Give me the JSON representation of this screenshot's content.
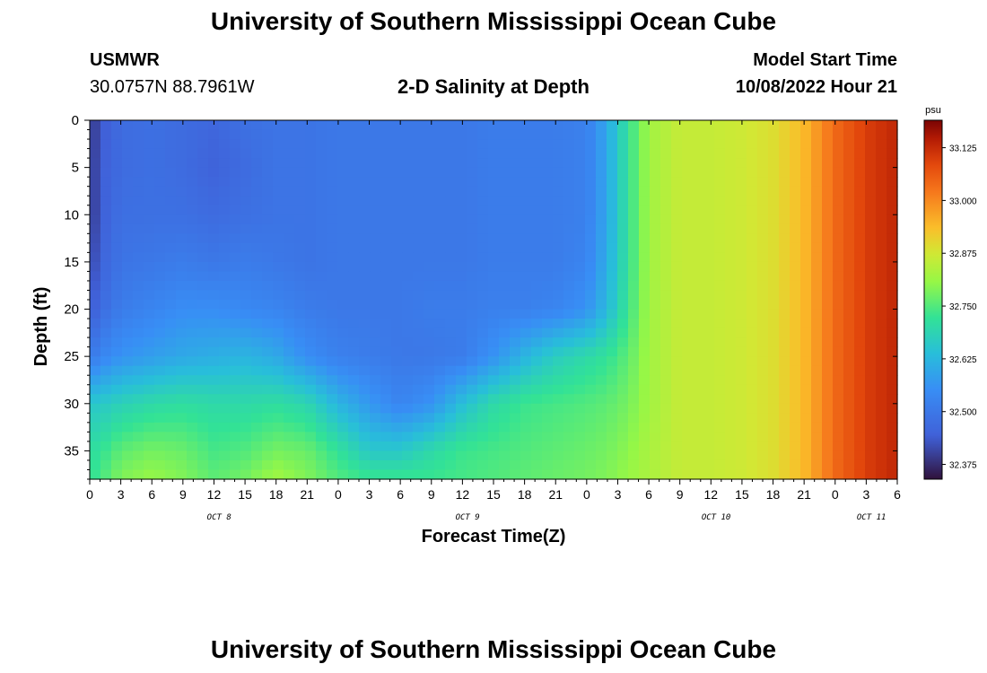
{
  "header": {
    "title": "University of Southern Mississippi Ocean Cube",
    "station": "USMWR",
    "location": "30.0757N  88.7961W",
    "plot_title": "2-D Salinity at Depth",
    "model_start_label": "Model Start Time",
    "model_start_value": "10/08/2022 Hour 21"
  },
  "footer": {
    "title": "University of Southern Mississippi Ocean Cube"
  },
  "chart_data": {
    "type": "heatmap",
    "title": "2-D Salinity at Depth",
    "xlabel": "Forecast Time(Z)",
    "ylabel": "Depth (ft)",
    "x_range_hours": [
      0,
      78
    ],
    "x_tick_labels": [
      "0",
      "3",
      "6",
      "9",
      "12",
      "15",
      "18",
      "21",
      "0",
      "3",
      "6",
      "9",
      "12",
      "15",
      "18",
      "21",
      "0",
      "3",
      "6",
      "9",
      "12",
      "15",
      "18",
      "21",
      "0",
      "3",
      "6"
    ],
    "date_labels": [
      {
        "text": "OCT 8",
        "hour": 12.5
      },
      {
        "text": "OCT 9",
        "hour": 36.5
      },
      {
        "text": "OCT 10",
        "hour": 60.5
      },
      {
        "text": "OCT 11",
        "hour": 75.5
      }
    ],
    "y_range": [
      0,
      38
    ],
    "y_ticks": [
      0,
      5,
      10,
      15,
      20,
      25,
      30,
      35
    ],
    "colorbar": {
      "unit": "psu",
      "range": [
        32.34,
        33.19
      ],
      "ticks": [
        "32.375",
        "32.500",
        "32.625",
        "32.750",
        "32.875",
        "33.000",
        "33.125"
      ]
    },
    "depths": [
      0,
      5,
      10,
      15,
      20,
      25,
      30,
      35,
      38
    ],
    "times": [
      0,
      1,
      3,
      6,
      9,
      12,
      15,
      18,
      21,
      24,
      27,
      30,
      33,
      36,
      39,
      42,
      45,
      48,
      50,
      52,
      54,
      57,
      60,
      63,
      66,
      69,
      72,
      75,
      78
    ],
    "values": [
      [
        32.38,
        32.43,
        32.47,
        32.48,
        32.47,
        32.46,
        32.48,
        32.49,
        32.49,
        32.5,
        32.5,
        32.5,
        32.5,
        32.5,
        32.51,
        32.51,
        32.51,
        32.52,
        32.6,
        32.72,
        32.82,
        32.86,
        32.86,
        32.87,
        32.89,
        32.94,
        33.04,
        33.1,
        33.13
      ],
      [
        32.38,
        32.44,
        32.47,
        32.48,
        32.47,
        32.45,
        32.47,
        32.49,
        32.49,
        32.5,
        32.5,
        32.5,
        32.5,
        32.5,
        32.51,
        32.51,
        32.51,
        32.52,
        32.6,
        32.72,
        32.82,
        32.86,
        32.86,
        32.87,
        32.89,
        32.94,
        33.04,
        33.1,
        33.13
      ],
      [
        32.38,
        32.44,
        32.48,
        32.48,
        32.48,
        32.47,
        32.48,
        32.49,
        32.49,
        32.5,
        32.5,
        32.5,
        32.5,
        32.5,
        32.51,
        32.51,
        32.51,
        32.52,
        32.6,
        32.72,
        32.82,
        32.86,
        32.86,
        32.87,
        32.89,
        32.94,
        33.04,
        33.1,
        33.13
      ],
      [
        32.4,
        32.45,
        32.49,
        32.5,
        32.51,
        32.5,
        32.51,
        32.5,
        32.49,
        32.5,
        32.5,
        32.5,
        32.5,
        32.5,
        32.51,
        32.51,
        32.51,
        32.53,
        32.61,
        32.72,
        32.82,
        32.86,
        32.86,
        32.87,
        32.89,
        32.94,
        33.04,
        33.1,
        33.13
      ],
      [
        32.43,
        32.47,
        32.51,
        32.53,
        32.55,
        32.55,
        32.54,
        32.53,
        32.51,
        32.5,
        32.5,
        32.5,
        32.51,
        32.51,
        32.52,
        32.52,
        32.53,
        32.56,
        32.63,
        32.73,
        32.82,
        32.86,
        32.86,
        32.87,
        32.89,
        32.94,
        33.04,
        33.1,
        33.13
      ],
      [
        32.5,
        32.53,
        32.56,
        32.58,
        32.6,
        32.61,
        32.62,
        32.6,
        32.55,
        32.52,
        32.51,
        32.5,
        32.5,
        32.51,
        32.56,
        32.62,
        32.67,
        32.7,
        32.72,
        32.76,
        32.82,
        32.86,
        32.86,
        32.87,
        32.89,
        32.94,
        33.04,
        33.1,
        33.13
      ],
      [
        32.66,
        32.66,
        32.68,
        32.7,
        32.71,
        32.7,
        32.7,
        32.71,
        32.69,
        32.62,
        32.57,
        32.53,
        32.56,
        32.64,
        32.7,
        32.73,
        32.74,
        32.75,
        32.76,
        32.78,
        32.82,
        32.86,
        32.86,
        32.87,
        32.89,
        32.94,
        33.04,
        33.1,
        33.13
      ],
      [
        32.71,
        32.72,
        32.76,
        32.78,
        32.77,
        32.74,
        32.75,
        32.78,
        32.77,
        32.72,
        32.66,
        32.66,
        32.7,
        32.73,
        32.74,
        32.75,
        32.76,
        32.77,
        32.78,
        32.8,
        32.83,
        32.86,
        32.86,
        32.87,
        32.89,
        32.94,
        33.04,
        33.1,
        33.13
      ],
      [
        32.72,
        32.74,
        32.79,
        32.81,
        32.79,
        32.76,
        32.78,
        32.82,
        32.79,
        32.75,
        32.73,
        32.73,
        32.73,
        32.74,
        32.75,
        32.76,
        32.77,
        32.78,
        32.79,
        32.81,
        32.83,
        32.86,
        32.86,
        32.87,
        32.89,
        32.94,
        33.04,
        33.1,
        33.13
      ]
    ]
  }
}
